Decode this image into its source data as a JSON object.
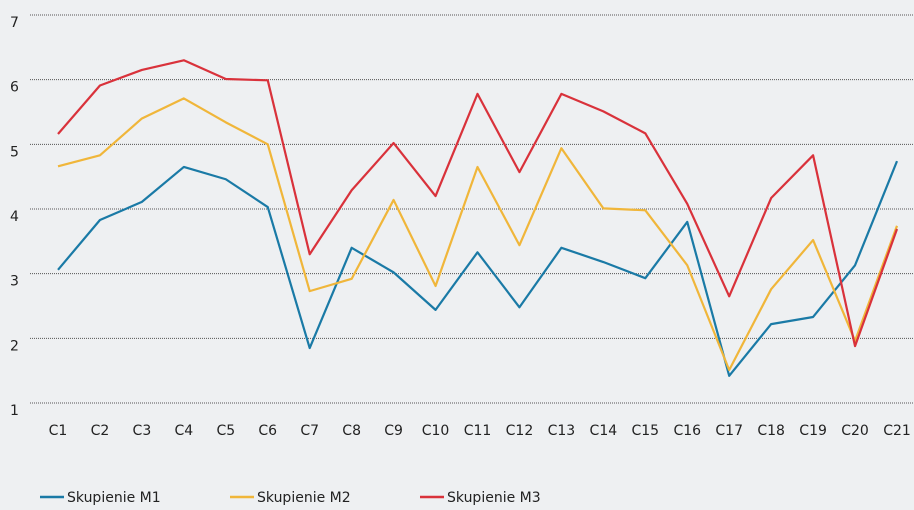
{
  "chart_data": {
    "type": "line",
    "categories": [
      "C1",
      "C2",
      "C3",
      "C4",
      "C5",
      "C6",
      "C7",
      "C8",
      "C9",
      "C10",
      "C11",
      "C12",
      "C13",
      "C14",
      "C15",
      "C16",
      "C17",
      "C18",
      "C19",
      "C20",
      "C21"
    ],
    "series": [
      {
        "name": "Skupienie M1",
        "color": "#1a7aa6",
        "values": [
          3.06,
          3.83,
          4.11,
          4.65,
          4.46,
          4.03,
          1.85,
          3.4,
          3.02,
          2.44,
          3.33,
          2.48,
          3.4,
          3.18,
          2.93,
          3.8,
          1.42,
          2.22,
          2.33,
          3.13,
          4.74
        ]
      },
      {
        "name": "Skupienie M2",
        "color": "#f0b63a",
        "values": [
          4.66,
          4.83,
          5.4,
          5.71,
          5.34,
          5.0,
          2.73,
          2.92,
          4.14,
          2.81,
          4.65,
          3.44,
          4.94,
          4.01,
          3.98,
          3.13,
          1.51,
          2.76,
          3.52,
          1.96,
          3.74
        ]
      },
      {
        "name": "Skupienie M3",
        "color": "#d9323b",
        "values": [
          5.16,
          5.91,
          6.15,
          6.3,
          6.01,
          5.99,
          3.3,
          4.29,
          5.02,
          4.2,
          5.78,
          4.57,
          5.78,
          5.51,
          5.17,
          4.08,
          2.65,
          4.17,
          4.83,
          1.88,
          3.69
        ]
      }
    ],
    "ylim": [
      1,
      7
    ],
    "yticks": [
      1,
      2,
      3,
      4,
      5,
      6,
      7
    ],
    "grid": true,
    "legend": "bottom-left"
  }
}
